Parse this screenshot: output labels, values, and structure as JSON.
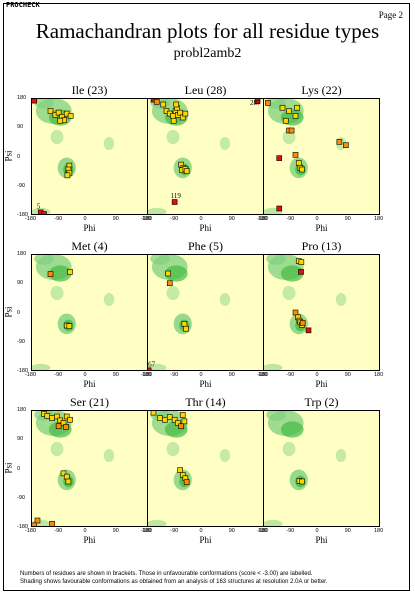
{
  "header": {
    "program": "PROCHECK",
    "page": "Page 2",
    "title": "Ramachandran plots for all residue types",
    "subtitle": "probl2amb2"
  },
  "footer": {
    "line1": "Numbers of residues are shown in brackets. Those in unfavourable conformations (score < -3.00) are labelled.",
    "line2": "Shading shows favourable conformations as obtained from an analysis of 163 structures at resolution 2.0A or better."
  },
  "colors": {
    "background": "#ffffc4",
    "favourable": "#7fd07f",
    "core": "#44bb44",
    "point_fill": "#ffd700",
    "point_unfav": "#dd1111",
    "point_mid": "#ff8c00",
    "point_edge": "#000000"
  },
  "chart_data": [
    {
      "type": "scatter",
      "title": "Ile (23)",
      "xlabel": "Phi",
      "ylabel": "Psi",
      "xlim": [
        -180,
        180
      ],
      "ylim": [
        -180,
        180
      ],
      "xticks": [
        "-180",
        "-90",
        "0",
        "90",
        "180"
      ],
      "yticks": [
        "180",
        "90",
        "0",
        "-90",
        "-180"
      ],
      "points": [
        {
          "phi": -170,
          "psi": 172,
          "kind": "bad"
        },
        {
          "phi": -120,
          "psi": 140,
          "kind": "fav"
        },
        {
          "phi": -105,
          "psi": 128,
          "kind": "fav"
        },
        {
          "phi": -95,
          "psi": 135,
          "kind": "fav"
        },
        {
          "phi": -85,
          "psi": 122,
          "kind": "fav"
        },
        {
          "phi": -78,
          "psi": 112,
          "kind": "fav"
        },
        {
          "phi": -70,
          "psi": 132,
          "kind": "fav"
        },
        {
          "phi": -58,
          "psi": 125,
          "kind": "fav"
        },
        {
          "phi": -90,
          "psi": 110,
          "kind": "fav"
        },
        {
          "phi": -62,
          "psi": -28,
          "kind": "fav"
        },
        {
          "phi": -65,
          "psi": -40,
          "kind": "fav"
        },
        {
          "phi": -62,
          "psi": -50,
          "kind": "fav"
        },
        {
          "phi": -68,
          "psi": -58,
          "kind": "fav"
        },
        {
          "phi": -150,
          "psi": -172,
          "kind": "bad",
          "label": "5"
        },
        {
          "phi": -140,
          "psi": -177,
          "kind": "bad"
        }
      ]
    },
    {
      "type": "scatter",
      "title": "Leu (28)",
      "xlabel": "Phi",
      "ylabel": "",
      "xlim": [
        -180,
        180
      ],
      "ylim": [
        -180,
        180
      ],
      "xticks": [
        "-180",
        "-90",
        "0",
        "90",
        "180"
      ],
      "yticks": [],
      "points": [
        {
          "phi": -160,
          "psi": 175,
          "kind": "bad"
        },
        {
          "phi": -150,
          "psi": 168,
          "kind": "mid"
        },
        {
          "phi": -130,
          "psi": 160,
          "kind": "fav"
        },
        {
          "phi": -120,
          "psi": 140,
          "kind": "fav"
        },
        {
          "phi": -110,
          "psi": 132,
          "kind": "fav"
        },
        {
          "phi": -100,
          "psi": 125,
          "kind": "fav"
        },
        {
          "phi": -92,
          "psi": 140,
          "kind": "fav"
        },
        {
          "phi": -85,
          "psi": 128,
          "kind": "fav"
        },
        {
          "phi": -78,
          "psi": 135,
          "kind": "fav"
        },
        {
          "phi": -70,
          "psi": 120,
          "kind": "fav"
        },
        {
          "phi": -98,
          "psi": 110,
          "kind": "fav"
        },
        {
          "phi": -88,
          "psi": 150,
          "kind": "fav"
        },
        {
          "phi": -62,
          "psi": 132,
          "kind": "fav"
        },
        {
          "phi": -90,
          "psi": 160,
          "kind": "fav"
        },
        {
          "phi": -75,
          "psi": -25,
          "kind": "fav"
        },
        {
          "phi": -68,
          "psi": -35,
          "kind": "fav"
        },
        {
          "phi": -72,
          "psi": -42,
          "kind": "fav"
        },
        {
          "phi": -62,
          "psi": -38,
          "kind": "fav"
        },
        {
          "phi": -58,
          "psi": -45,
          "kind": "fav"
        },
        {
          "phi": 160,
          "psi": 170,
          "kind": "bad",
          "label": "287"
        },
        {
          "phi": -95,
          "psi": -140,
          "kind": "bad",
          "label": "119"
        }
      ]
    },
    {
      "type": "scatter",
      "title": "Lys (22)",
      "xlabel": "Phi",
      "ylabel": "",
      "xlim": [
        -180,
        180
      ],
      "ylim": [
        -180,
        180
      ],
      "xticks": [
        "-180",
        "-90",
        "0",
        "90",
        "180"
      ],
      "yticks": [],
      "points": [
        {
          "phi": -165,
          "psi": 165,
          "kind": "mid"
        },
        {
          "phi": -120,
          "psi": 150,
          "kind": "fav"
        },
        {
          "phi": -100,
          "psi": 140,
          "kind": "fav"
        },
        {
          "phi": -80,
          "psi": 125,
          "kind": "fav"
        },
        {
          "phi": -75,
          "psi": 150,
          "kind": "fav"
        },
        {
          "phi": -110,
          "psi": 110,
          "kind": "fav"
        },
        {
          "phi": -100,
          "psi": 80,
          "kind": "mid"
        },
        {
          "phi": -92,
          "psi": 80,
          "kind": "mid"
        },
        {
          "phi": -70,
          "psi": -20,
          "kind": "fav"
        },
        {
          "phi": -65,
          "psi": -35,
          "kind": "fav"
        },
        {
          "phi": -60,
          "psi": -40,
          "kind": "fav"
        },
        {
          "phi": -80,
          "psi": 5,
          "kind": "mid"
        },
        {
          "phi": -130,
          "psi": -5,
          "kind": "bad"
        },
        {
          "phi": 55,
          "psi": 45,
          "kind": "mid"
        },
        {
          "phi": 75,
          "psi": 35,
          "kind": "mid"
        },
        {
          "phi": -130,
          "psi": -160,
          "kind": "bad"
        }
      ]
    },
    {
      "type": "scatter",
      "title": "Met (4)",
      "xlabel": "Phi",
      "ylabel": "Psi",
      "xlim": [
        -180,
        180
      ],
      "ylim": [
        -180,
        180
      ],
      "xticks": [
        "-180",
        "-90",
        "0",
        "90",
        "180"
      ],
      "yticks": [
        "180",
        "90",
        "0",
        "-90",
        "-180"
      ],
      "points": [
        {
          "phi": -120,
          "psi": 118,
          "kind": "mid"
        },
        {
          "phi": -60,
          "psi": 125,
          "kind": "fav"
        },
        {
          "phi": -70,
          "psi": -40,
          "kind": "fav"
        },
        {
          "phi": -62,
          "psi": -42,
          "kind": "fav"
        }
      ]
    },
    {
      "type": "scatter",
      "title": "Phe (5)",
      "xlabel": "Phi",
      "ylabel": "",
      "xlim": [
        -180,
        180
      ],
      "ylim": [
        -180,
        180
      ],
      "xticks": [
        "-180",
        "-90",
        "0",
        "90",
        "180"
      ],
      "yticks": [],
      "points": [
        {
          "phi": -115,
          "psi": 120,
          "kind": "fav"
        },
        {
          "phi": -110,
          "psi": 90,
          "kind": "mid"
        },
        {
          "phi": -65,
          "psi": -35,
          "kind": "fav"
        },
        {
          "phi": -60,
          "psi": -50,
          "kind": "fav"
        },
        {
          "phi": -175,
          "psi": -178,
          "kind": "bad",
          "label": "267"
        }
      ]
    },
    {
      "type": "scatter",
      "title": "Pro (13)",
      "xlabel": "Phi",
      "ylabel": "",
      "xlim": [
        -180,
        180
      ],
      "ylim": [
        -180,
        180
      ],
      "xticks": [
        "-180",
        "-90",
        "0",
        "90",
        "180"
      ],
      "yticks": [],
      "points": [
        {
          "phi": -70,
          "psi": 158,
          "kind": "fav"
        },
        {
          "phi": -62,
          "psi": 155,
          "kind": "fav"
        },
        {
          "phi": -63,
          "psi": 125,
          "kind": "bad"
        },
        {
          "phi": -80,
          "psi": 0,
          "kind": "mid"
        },
        {
          "phi": -72,
          "psi": -15,
          "kind": "fav"
        },
        {
          "phi": -68,
          "psi": -25,
          "kind": "fav"
        },
        {
          "phi": -65,
          "psi": -30,
          "kind": "fav"
        },
        {
          "phi": -60,
          "psi": -38,
          "kind": "fav"
        },
        {
          "phi": -58,
          "psi": -32,
          "kind": "mid"
        },
        {
          "phi": -40,
          "psi": -55,
          "kind": "bad"
        }
      ]
    },
    {
      "type": "scatter",
      "title": "Ser (21)",
      "xlabel": "Phi",
      "ylabel": "Psi",
      "xlim": [
        -180,
        180
      ],
      "ylim": [
        -180,
        180
      ],
      "xticks": [
        "-180",
        "-90",
        "0",
        "90",
        "180"
      ],
      "yticks": [
        "180",
        "90",
        "0",
        "-90",
        "-180"
      ],
      "points": [
        {
          "phi": -140,
          "psi": 168,
          "kind": "fav"
        },
        {
          "phi": -130,
          "psi": 162,
          "kind": "fav"
        },
        {
          "phi": -115,
          "psi": 155,
          "kind": "fav"
        },
        {
          "phi": -100,
          "psi": 160,
          "kind": "fav"
        },
        {
          "phi": -90,
          "psi": 148,
          "kind": "fav"
        },
        {
          "phi": -80,
          "psi": 140,
          "kind": "fav"
        },
        {
          "phi": -70,
          "psi": 160,
          "kind": "fav"
        },
        {
          "phi": -60,
          "psi": 150,
          "kind": "fav"
        },
        {
          "phi": -95,
          "psi": 130,
          "kind": "mid"
        },
        {
          "phi": -72,
          "psi": 128,
          "kind": "mid"
        },
        {
          "phi": -80,
          "psi": -15,
          "kind": "fav"
        },
        {
          "phi": -70,
          "psi": -25,
          "kind": "fav"
        },
        {
          "phi": -65,
          "psi": -40,
          "kind": "fav"
        },
        {
          "phi": -160,
          "psi": -160,
          "kind": "mid"
        },
        {
          "phi": -170,
          "psi": -175,
          "kind": "mid"
        },
        {
          "phi": -115,
          "psi": -170,
          "kind": "mid"
        }
      ]
    },
    {
      "type": "scatter",
      "title": "Thr (14)",
      "xlabel": "Phi",
      "ylabel": "",
      "xlim": [
        -180,
        180
      ],
      "ylim": [
        -180,
        180
      ],
      "xticks": [
        "-180",
        "-90",
        "0",
        "90",
        "180"
      ],
      "yticks": [],
      "points": [
        {
          "phi": -160,
          "psi": 172,
          "kind": "fav"
        },
        {
          "phi": -140,
          "psi": 155,
          "kind": "fav"
        },
        {
          "phi": -125,
          "psi": 150,
          "kind": "fav"
        },
        {
          "phi": -110,
          "psi": 158,
          "kind": "fav"
        },
        {
          "phi": -95,
          "psi": 150,
          "kind": "fav"
        },
        {
          "phi": -85,
          "psi": 140,
          "kind": "fav"
        },
        {
          "phi": -70,
          "psi": 165,
          "kind": "fav"
        },
        {
          "phi": -65,
          "psi": 145,
          "kind": "fav"
        },
        {
          "phi": -75,
          "psi": 130,
          "kind": "mid"
        },
        {
          "phi": -78,
          "psi": -5,
          "kind": "fav"
        },
        {
          "phi": -70,
          "psi": -20,
          "kind": "fav"
        },
        {
          "phi": -62,
          "psi": -30,
          "kind": "fav"
        },
        {
          "phi": -58,
          "psi": -42,
          "kind": "mid"
        }
      ]
    },
    {
      "type": "scatter",
      "title": "Trp (2)",
      "xlabel": "Phi",
      "ylabel": "",
      "xlim": [
        -180,
        180
      ],
      "ylim": [
        -180,
        180
      ],
      "xticks": [
        "-180",
        "-90",
        "0",
        "90",
        "180"
      ],
      "yticks": [],
      "points": [
        {
          "phi": -68,
          "psi": -38,
          "kind": "fav"
        },
        {
          "phi": -60,
          "psi": -40,
          "kind": "fav"
        }
      ]
    }
  ]
}
